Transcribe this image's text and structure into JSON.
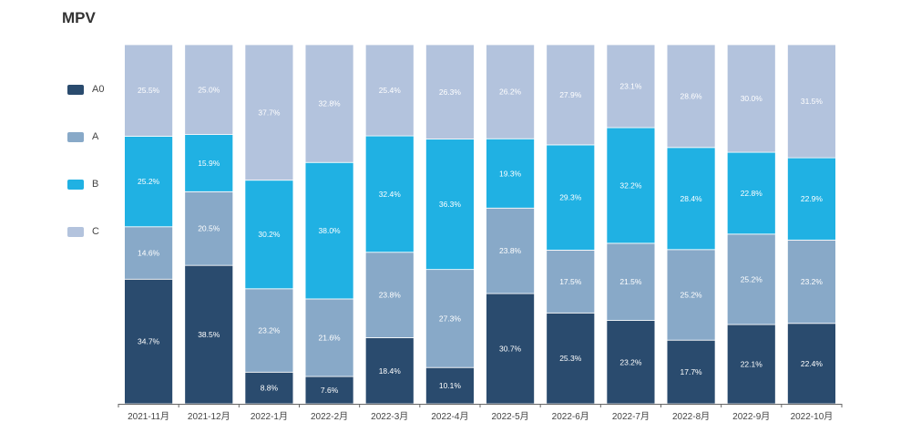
{
  "chart_data": {
    "type": "bar",
    "stacked": true,
    "normalized": true,
    "title": "MPV",
    "xlabel": "",
    "ylabel": "",
    "ylim": [
      0,
      100
    ],
    "grid": false,
    "legend_position": "left",
    "categories": [
      "2021-11月",
      "2021-12月",
      "2022-1月",
      "2022-2月",
      "2022-3月",
      "2022-4月",
      "2022-5月",
      "2022-6月",
      "2022-7月",
      "2022-8月",
      "2022-9月",
      "2022-10月"
    ],
    "series": [
      {
        "name": "A0",
        "color": "#2a4b6e",
        "values": [
          34.7,
          38.5,
          8.8,
          7.6,
          18.4,
          10.1,
          30.7,
          25.3,
          23.2,
          17.7,
          22.1,
          22.4
        ]
      },
      {
        "name": "A",
        "color": "#88a9c8",
        "values": [
          14.6,
          20.5,
          23.2,
          21.6,
          23.8,
          27.3,
          23.8,
          17.5,
          21.5,
          25.2,
          25.2,
          23.2
        ]
      },
      {
        "name": "B",
        "color": "#20b1e3",
        "values": [
          25.2,
          15.9,
          30.2,
          38.0,
          32.4,
          36.3,
          19.3,
          29.3,
          32.2,
          28.4,
          22.8,
          22.9
        ]
      },
      {
        "name": "C",
        "color": "#b3c3dd",
        "values": [
          25.5,
          25.0,
          37.7,
          32.8,
          25.4,
          26.3,
          26.2,
          27.9,
          23.1,
          28.6,
          30.0,
          31.5
        ]
      }
    ]
  }
}
